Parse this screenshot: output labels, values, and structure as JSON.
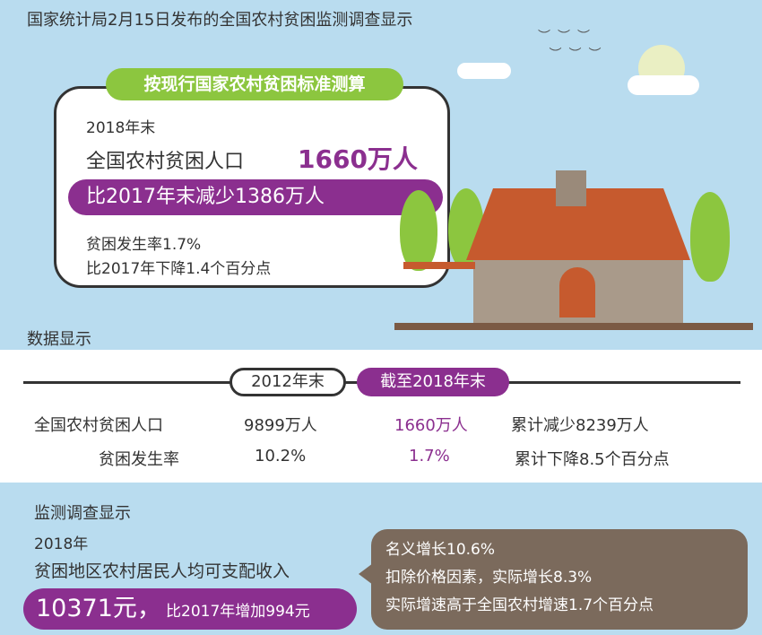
{
  "title": "国家统计局2月15日发布的全国农村贫困监测调查显示",
  "top_card": {
    "standard": "按现行国家农村贫困标准测算",
    "year_end": "2018年末",
    "population_label": "全国农村贫困人口",
    "population_value": "1660万人",
    "decrease": "比2017年末减少1386万人",
    "rate": "贫困发生率1.7%",
    "rate_decrease": "比2017年下降1.4个百分点"
  },
  "data_section": {
    "heading": "数据显示",
    "col_2012": "2012年末",
    "col_2018": "截至2018年末",
    "rows": [
      {
        "label": "全国农村贫困人口",
        "v2012": "9899万人",
        "v2018": "1660万人",
        "change": "累计减少8239万人"
      },
      {
        "label": "贫困发生率",
        "v2012": "10.2%",
        "v2018": "1.7%",
        "change": "累计下降8.5个百分点"
      }
    ]
  },
  "survey": {
    "heading": "监测调查显示",
    "year": "2018年",
    "income_label": "贫困地区农村居民人均可支配收入",
    "income_value": "10371元，",
    "income_increase": "比2017年增加994元",
    "bubble": [
      "名义增长10.6%",
      "扣除价格因素，实际增长8.3%",
      "实际增速高于全国农村增速1.7个百分点"
    ]
  },
  "colors": {
    "purple": "#8b2f8f",
    "green": "#8cc63f",
    "sky": "#b9dcef",
    "brown": "#7b6a5c"
  }
}
